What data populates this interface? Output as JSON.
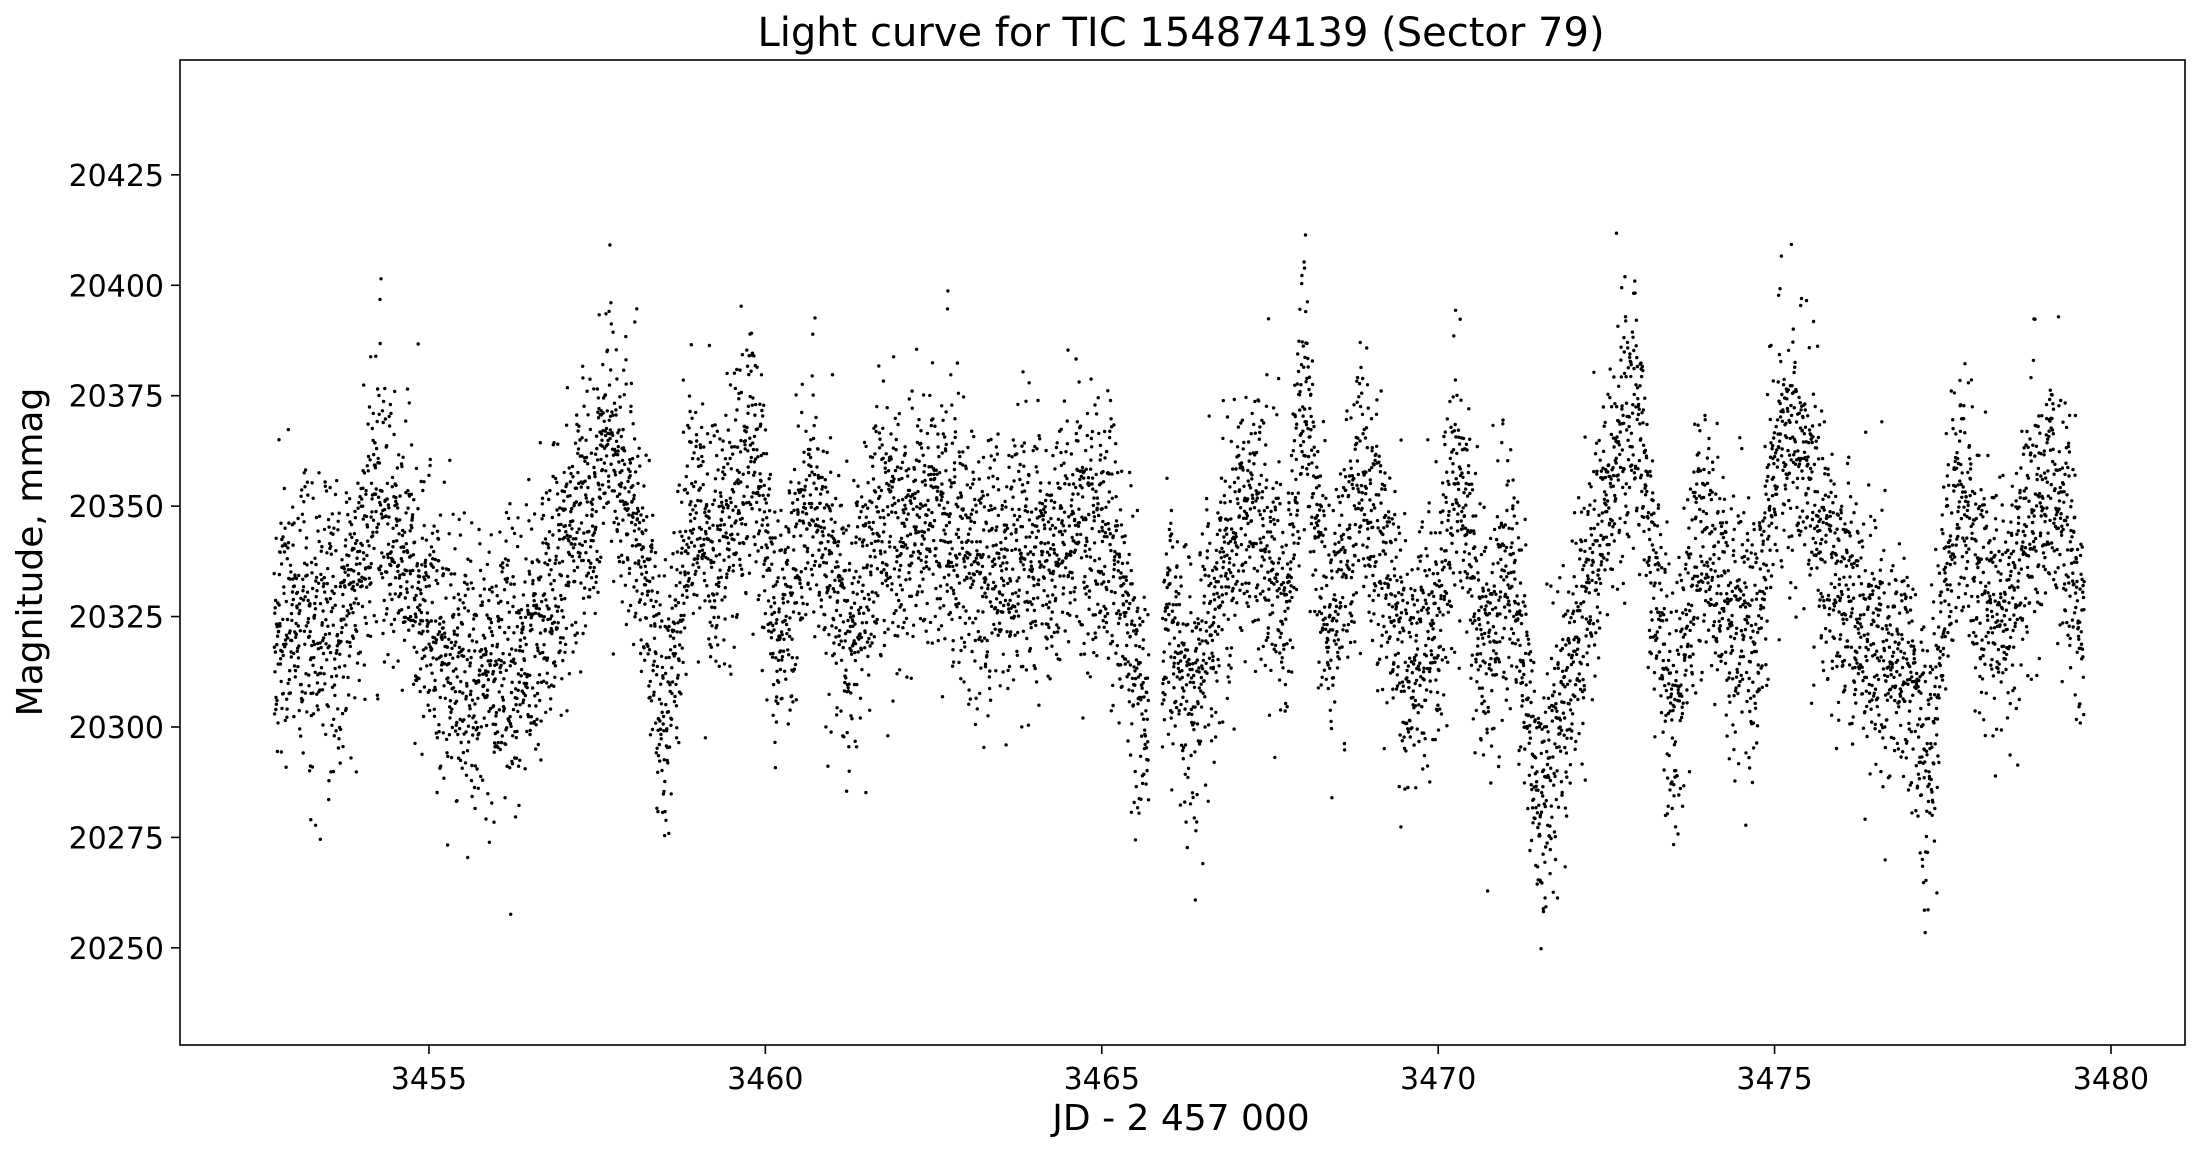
{
  "chart_data": {
    "type": "scatter",
    "title": "Light curve for TIC 154874139 (Sector 79)",
    "xlabel": "JD - 2 457 000",
    "ylabel": "Magnitude, mmag",
    "xlim": [
      3451.3,
      3481.1
    ],
    "ylim": [
      20228,
      20451
    ],
    "x_ticks": [
      3455,
      3460,
      3465,
      3470,
      3475,
      3480
    ],
    "y_ticks": [
      20250,
      20275,
      20300,
      20325,
      20350,
      20375,
      20400,
      20425
    ],
    "y_axis_inverted": false,
    "grid": false,
    "legend": "none",
    "marker_color": "#000000",
    "x_range_observed": [
      3452.7,
      3479.6
    ],
    "gap": [
      3465.7,
      3465.9
    ],
    "trend_points": [
      {
        "x": 3452.7,
        "y": 20322
      },
      {
        "x": 3453.2,
        "y": 20326
      },
      {
        "x": 3453.7,
        "y": 20322
      },
      {
        "x": 3454.2,
        "y": 20352
      },
      {
        "x": 3454.7,
        "y": 20338
      },
      {
        "x": 3455.2,
        "y": 20318
      },
      {
        "x": 3455.7,
        "y": 20310
      },
      {
        "x": 3456.2,
        "y": 20314
      },
      {
        "x": 3456.7,
        "y": 20326
      },
      {
        "x": 3457.2,
        "y": 20344
      },
      {
        "x": 3457.7,
        "y": 20366
      },
      {
        "x": 3458.1,
        "y": 20346
      },
      {
        "x": 3458.5,
        "y": 20300
      },
      {
        "x": 3458.9,
        "y": 20352
      },
      {
        "x": 3459.3,
        "y": 20336
      },
      {
        "x": 3459.8,
        "y": 20366
      },
      {
        "x": 3460.2,
        "y": 20318
      },
      {
        "x": 3460.7,
        "y": 20356
      },
      {
        "x": 3461.2,
        "y": 20320
      },
      {
        "x": 3461.7,
        "y": 20344
      },
      {
        "x": 3462.2,
        "y": 20348
      },
      {
        "x": 3462.7,
        "y": 20344
      },
      {
        "x": 3463.2,
        "y": 20336
      },
      {
        "x": 3463.7,
        "y": 20338
      },
      {
        "x": 3464.2,
        "y": 20340
      },
      {
        "x": 3464.7,
        "y": 20348
      },
      {
        "x": 3465.2,
        "y": 20342
      },
      {
        "x": 3465.6,
        "y": 20300
      },
      {
        "x": 3466.0,
        "y": 20324
      },
      {
        "x": 3466.4,
        "y": 20308
      },
      {
        "x": 3466.9,
        "y": 20340
      },
      {
        "x": 3467.3,
        "y": 20354
      },
      {
        "x": 3467.7,
        "y": 20322
      },
      {
        "x": 3468.0,
        "y": 20376
      },
      {
        "x": 3468.4,
        "y": 20318
      },
      {
        "x": 3468.8,
        "y": 20360
      },
      {
        "x": 3469.2,
        "y": 20336
      },
      {
        "x": 3469.6,
        "y": 20312
      },
      {
        "x": 3470.0,
        "y": 20326
      },
      {
        "x": 3470.3,
        "y": 20358
      },
      {
        "x": 3470.7,
        "y": 20312
      },
      {
        "x": 3471.1,
        "y": 20338
      },
      {
        "x": 3471.5,
        "y": 20282
      },
      {
        "x": 3471.9,
        "y": 20308
      },
      {
        "x": 3472.3,
        "y": 20336
      },
      {
        "x": 3472.6,
        "y": 20358
      },
      {
        "x": 3472.9,
        "y": 20374
      },
      {
        "x": 3473.5,
        "y": 20300
      },
      {
        "x": 3473.9,
        "y": 20344
      },
      {
        "x": 3474.3,
        "y": 20330
      },
      {
        "x": 3474.7,
        "y": 20318
      },
      {
        "x": 3475.1,
        "y": 20368
      },
      {
        "x": 3475.5,
        "y": 20358
      },
      {
        "x": 3475.9,
        "y": 20330
      },
      {
        "x": 3476.3,
        "y": 20322
      },
      {
        "x": 3476.7,
        "y": 20320
      },
      {
        "x": 3477.0,
        "y": 20310
      },
      {
        "x": 3477.3,
        "y": 20292
      },
      {
        "x": 3477.7,
        "y": 20352
      },
      {
        "x": 3478.1,
        "y": 20330
      },
      {
        "x": 3478.5,
        "y": 20326
      },
      {
        "x": 3478.9,
        "y": 20354
      },
      {
        "x": 3479.3,
        "y": 20350
      },
      {
        "x": 3479.6,
        "y": 20318
      }
    ]
  }
}
